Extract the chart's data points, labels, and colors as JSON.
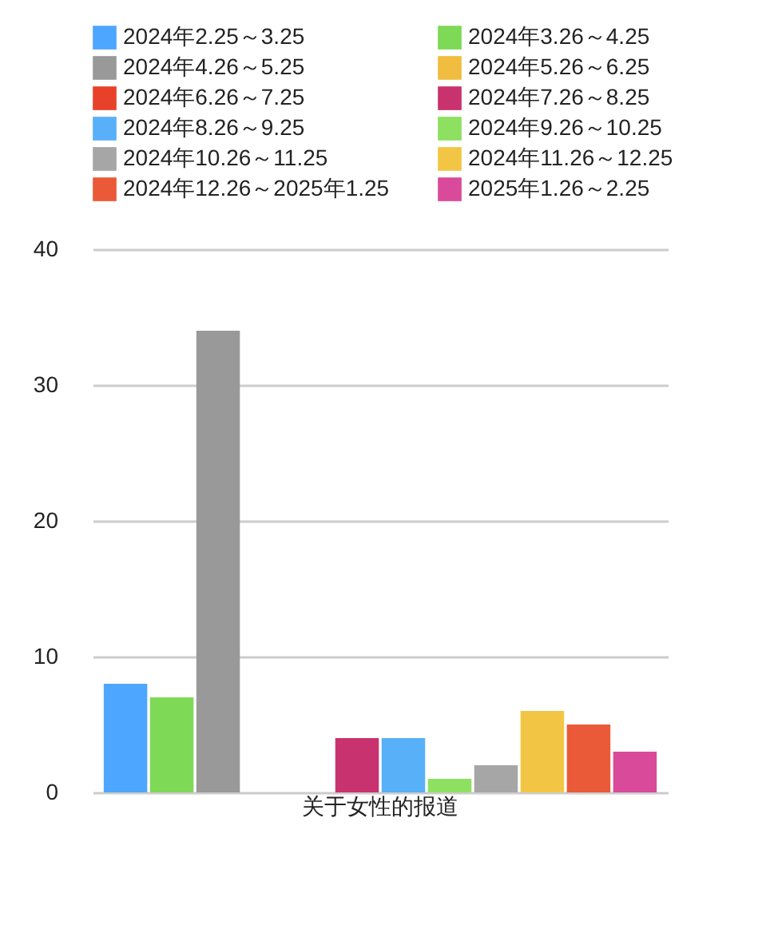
{
  "chart_data": {
    "type": "bar",
    "categories": [
      "关于女性的报道"
    ],
    "series": [
      {
        "name": "2024年2.25～3.25",
        "color": "#4da6ff",
        "values": [
          8
        ]
      },
      {
        "name": "2024年3.26～4.25",
        "color": "#7ed957",
        "values": [
          7
        ]
      },
      {
        "name": "2024年4.26～5.25",
        "color": "#999999",
        "values": [
          34
        ]
      },
      {
        "name": "2024年5.26～6.25",
        "color": "#f0bd40",
        "values": [
          0
        ]
      },
      {
        "name": "2024年6.26～7.25",
        "color": "#e8412a",
        "values": [
          0
        ]
      },
      {
        "name": "2024年7.26～8.25",
        "color": "#c8326e",
        "values": [
          4
        ]
      },
      {
        "name": "2024年8.26～9.25",
        "color": "#58b0f8",
        "values": [
          4
        ]
      },
      {
        "name": "2024年9.26～10.25",
        "color": "#8ee060",
        "values": [
          1
        ]
      },
      {
        "name": "2024年10.26～11.25",
        "color": "#a6a6a6",
        "values": [
          2
        ]
      },
      {
        "name": "2024年11.26～12.25",
        "color": "#f2c644",
        "values": [
          6
        ]
      },
      {
        "name": "2024年12.26～2025年1.25",
        "color": "#ea5a38",
        "values": [
          5
        ]
      },
      {
        "name": "2025年1.26～2.25",
        "color": "#d94a9a",
        "values": [
          3
        ]
      }
    ],
    "ylim": [
      0,
      40
    ],
    "yticks": [
      0,
      10,
      20,
      30,
      40
    ],
    "grid": "y",
    "legend": "top"
  }
}
